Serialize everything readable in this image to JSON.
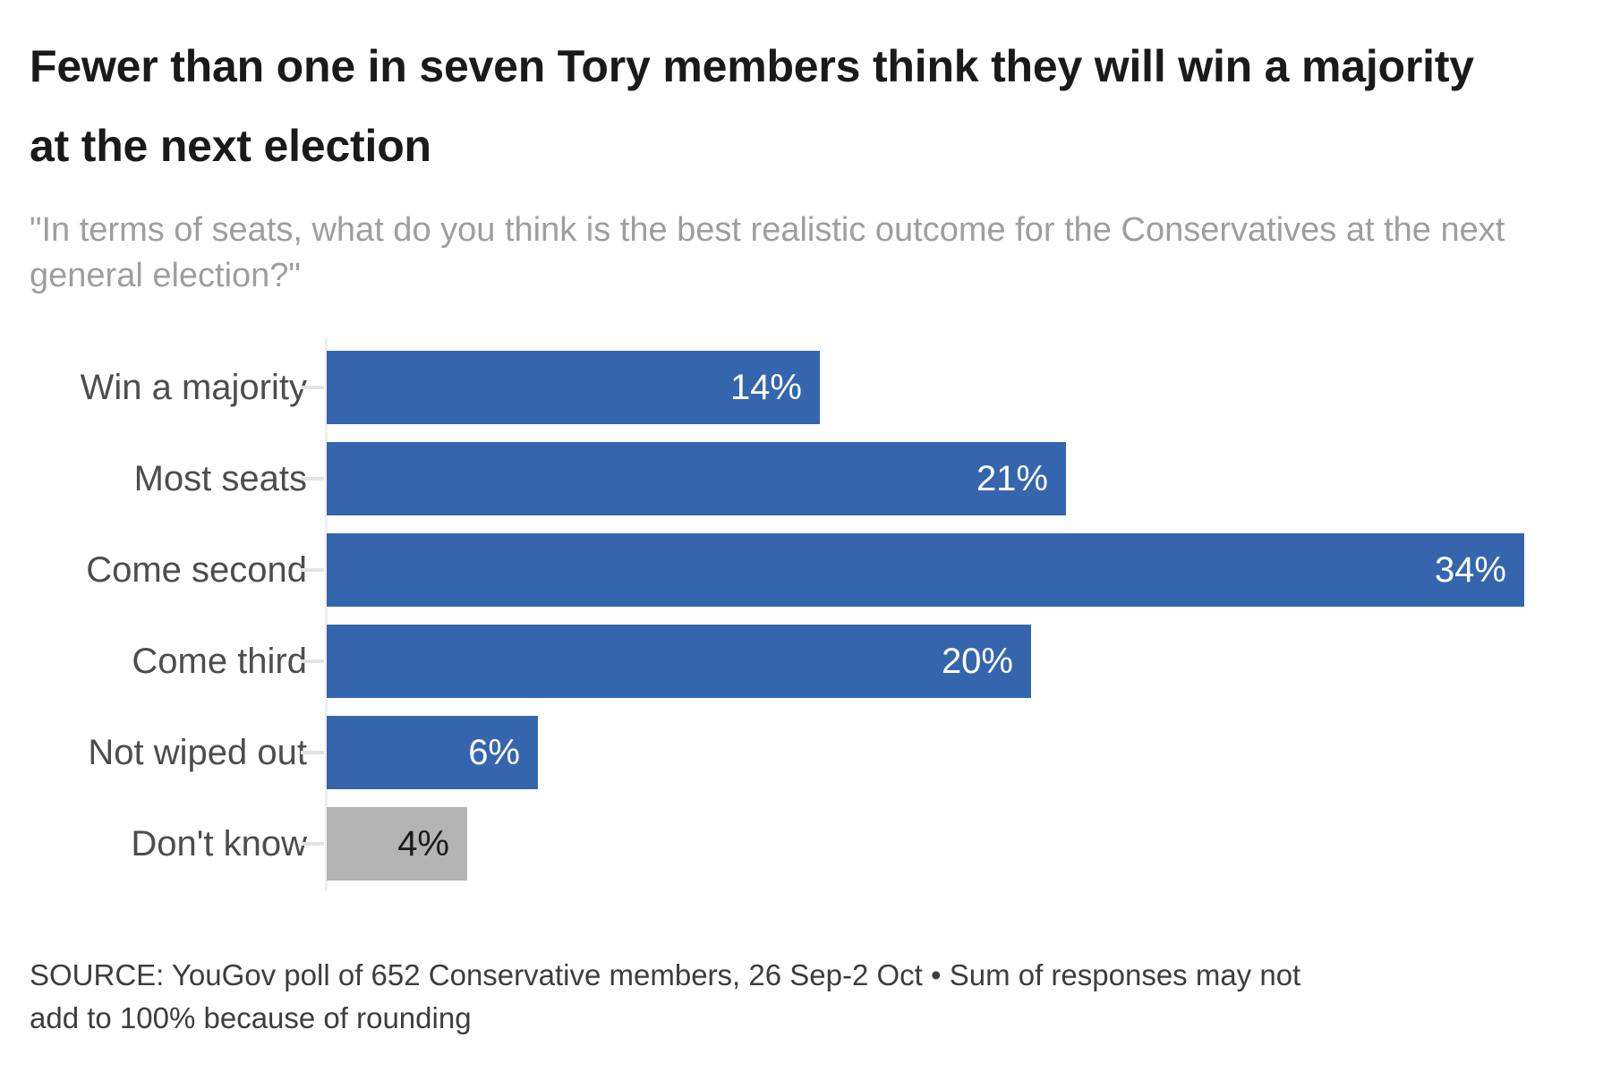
{
  "header": {
    "title": "Fewer than one in seven Tory members think they will win a majority at the next election",
    "subtitle": "\"In terms of seats, what do you think is the best realistic outcome for the Conservatives at the next general election?\""
  },
  "chart_data": {
    "type": "bar",
    "orientation": "horizontal",
    "categories": [
      "Win a majority",
      "Most seats",
      "Come second",
      "Come third",
      "Not wiped out",
      "Don't know"
    ],
    "values": [
      14,
      21,
      34,
      20,
      6,
      4
    ],
    "value_labels": [
      "14%",
      "21%",
      "34%",
      "20%",
      "6%",
      "4%"
    ],
    "bar_colors": [
      "#3566ad",
      "#3566ad",
      "#3566ad",
      "#3566ad",
      "#3566ad",
      "#b4b4b4"
    ],
    "value_text_colors": [
      "#ffffff",
      "#ffffff",
      "#ffffff",
      "#ffffff",
      "#ffffff",
      "#1a1a1a"
    ],
    "title": "Fewer than one in seven Tory members think they will win a majority at the next election",
    "xlabel": "",
    "ylabel": "",
    "xlim": [
      0,
      34
    ],
    "grid": false,
    "legend": false,
    "value_labels_position": "inside-end"
  },
  "source": {
    "text": "SOURCE: YouGov poll of 652 Conservative members, 26 Sep-2 Oct • Sum of responses may not add to 100% because of rounding"
  },
  "colors": {
    "bar_primary": "#3566ad",
    "bar_neutral": "#b4b4b4",
    "title_text": "#1a1a1a",
    "subtitle_text": "#9e9e9e",
    "category_text": "#4d4d4d",
    "source_text": "#3d3d3d",
    "axis_line": "#efefef",
    "tick_mark": "#e3e3e3",
    "background": "#ffffff"
  }
}
